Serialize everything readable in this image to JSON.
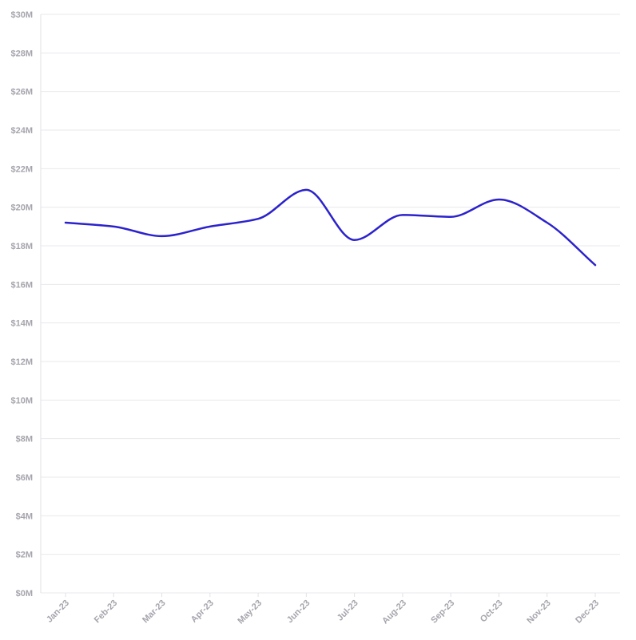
{
  "chart_data": {
    "type": "line",
    "title": "",
    "xlabel": "",
    "ylabel": "",
    "categories": [
      "Jan-23",
      "Feb-23",
      "Mar-23",
      "Apr-23",
      "May-23",
      "Jun-23",
      "Jul-23",
      "Aug-23",
      "Sep-23",
      "Oct-23",
      "Nov-23",
      "Dec-23"
    ],
    "series": [
      {
        "color": "#2b22cc",
        "values": [
          19.2,
          19.0,
          18.5,
          19.0,
          19.4,
          20.9,
          18.3,
          19.6,
          19.5,
          20.4,
          19.2,
          17.0
        ]
      }
    ],
    "ylim": [
      0,
      30
    ],
    "yticks": [
      {
        "value": 0,
        "label": "$0M"
      },
      {
        "value": 2,
        "label": "$2M"
      },
      {
        "value": 4,
        "label": "$4M"
      },
      {
        "value": 6,
        "label": "$6M"
      },
      {
        "value": 8,
        "label": "$8M"
      },
      {
        "value": 10,
        "label": "$10M"
      },
      {
        "value": 12,
        "label": "$12M"
      },
      {
        "value": 14,
        "label": "$14M"
      },
      {
        "value": 16,
        "label": "$16M"
      },
      {
        "value": 18,
        "label": "$18M"
      },
      {
        "value": 20,
        "label": "$20M"
      },
      {
        "value": 22,
        "label": "$22M"
      },
      {
        "value": 24,
        "label": "$24M"
      },
      {
        "value": 26,
        "label": "$26M"
      },
      {
        "value": 28,
        "label": "$28M"
      },
      {
        "value": 30,
        "label": "$30M"
      }
    ],
    "grid": true,
    "legend": "none",
    "colors": {
      "grid": "#e9e9ee",
      "tick_text": "#a5a5ad"
    }
  }
}
